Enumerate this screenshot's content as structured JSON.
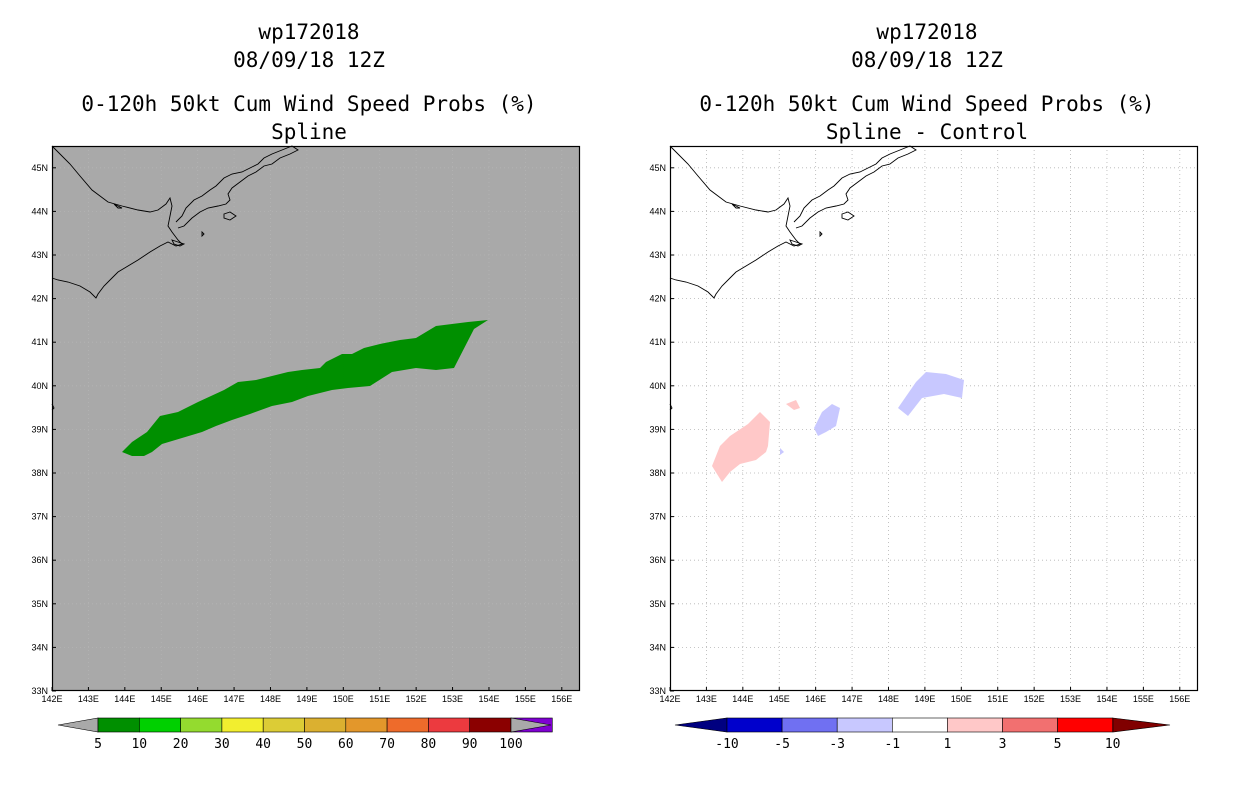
{
  "left_panel": {
    "title1": "wp172018",
    "title2": "08/09/18 12Z",
    "title3": "0-120h 50kt Cum Wind Speed Probs (%)",
    "title4": "Spline",
    "background_color": "#a9a9a9",
    "colorbar": {
      "labels": [
        "5",
        "10",
        "20",
        "30",
        "40",
        "50",
        "60",
        "70",
        "80",
        "90",
        "100"
      ],
      "colors": [
        "#008f00",
        "#00d000",
        "#94db2f",
        "#f2ee2f",
        "#dccc36",
        "#dbb030",
        "#e3972b",
        "#ee6b2b",
        "#ec3a3f",
        "#8b0000",
        "#7f00d2"
      ],
      "end_color": "#a9a9a9"
    }
  },
  "right_panel": {
    "title1": "wp172018",
    "title2": "08/09/18 12Z",
    "title3": "0-120h 50kt Cum Wind Speed Probs (%)",
    "title4": "Spline - Control",
    "background_color": "#ffffff",
    "colorbar": {
      "labels": [
        "-10",
        "-5",
        "-3",
        "-1",
        "1",
        "3",
        "5",
        "10"
      ],
      "colors": [
        "#0000cc",
        "#7070f2",
        "#c8c8ff",
        "#ffffff",
        "#ffc8c8",
        "#f27070",
        "#ff0000"
      ],
      "end_colors": [
        "#000080",
        "#800000"
      ]
    }
  },
  "axes": {
    "lon_labels": [
      "142E",
      "143E",
      "144E",
      "145E",
      "146E",
      "147E",
      "148E",
      "149E",
      "150E",
      "151E",
      "152E",
      "153E",
      "154E",
      "155E",
      "156E"
    ],
    "lat_labels": [
      "33N",
      "34N",
      "35N",
      "36N",
      "37N",
      "38N",
      "39N",
      "40N",
      "41N",
      "42N",
      "43N",
      "44N",
      "45N"
    ],
    "lon_range": [
      142,
      156.5
    ],
    "lat_range": [
      33,
      45.5
    ]
  },
  "colors": {
    "probability_5_10": "#008f00",
    "diff_positive": "#ffc8c8",
    "diff_negative": "#c8c8ff"
  }
}
